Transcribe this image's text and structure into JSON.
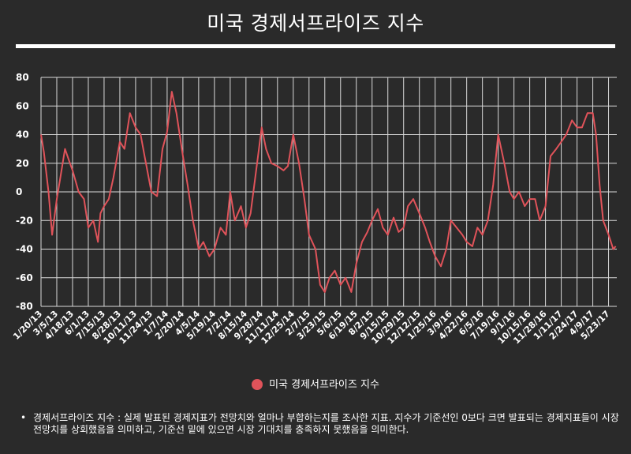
{
  "title": "미국 경제서프라이즈 지수",
  "legend": {
    "label": "미국 경제서프라이즈 지수",
    "color": "#e0535a"
  },
  "footnote": "경제서프라이즈 지수 : 실제 발표된 경제지표가 전망치와 얼마나 부합하는지를 조사한 지표. 지수가 기준선인 0보다 크면 발표되는 경제지표들이 시장전망치를 상회했음을 의미하고, 기준선 밑에 있으면 시장 기대치를 충족하지 못했음을 의미한다.",
  "colors": {
    "background": "#2a2a2a",
    "grid": "#d9d9d9",
    "line": "#e0535a",
    "text": "#ffffff"
  },
  "chart_data": {
    "type": "line",
    "title": "미국 경제서프라이즈 지수",
    "ylim": [
      -80,
      80
    ],
    "yticks": [
      80,
      60,
      40,
      20,
      0,
      -20,
      -40,
      -60,
      -80
    ],
    "grid": true,
    "legend_position": "bottom-center",
    "xlim": [
      "2013-01-20",
      "2017-06-15"
    ],
    "xticks": [
      "1/20/13",
      "3/5/13",
      "4/18/13",
      "6/1/13",
      "7/15/13",
      "8/28/13",
      "10/11/13",
      "11/24/13",
      "1/7/14",
      "2/20/14",
      "4/5/14",
      "5/19/14",
      "7/2/14",
      "8/15/14",
      "9/28/14",
      "11/11/14",
      "12/25/14",
      "2/7/15",
      "3/23/15",
      "5/6/15",
      "6/19/15",
      "8/2/15",
      "9/15/15",
      "10/29/15",
      "12/12/15",
      "1/25/16",
      "3/9/16",
      "4/22/16",
      "6/5/16",
      "7/19/16",
      "9/1/16",
      "10/15/16",
      "11/28/16",
      "1/11/17",
      "2/24/17",
      "4/9/17",
      "5/23/17"
    ],
    "series": [
      {
        "name": "미국 경제서프라이즈 지수",
        "x": [
          "2013-01-20",
          "2013-01-28",
          "2013-02-10",
          "2013-02-20",
          "2013-03-05",
          "2013-03-15",
          "2013-03-28",
          "2013-04-08",
          "2013-04-18",
          "2013-05-05",
          "2013-05-20",
          "2013-06-01",
          "2013-06-15",
          "2013-06-28",
          "2013-07-05",
          "2013-07-15",
          "2013-07-28",
          "2013-08-10",
          "2013-08-28",
          "2013-09-10",
          "2013-09-25",
          "2013-10-11",
          "2013-10-25",
          "2013-11-05",
          "2013-11-24",
          "2013-12-10",
          "2013-12-25",
          "2014-01-07",
          "2014-01-20",
          "2014-02-02",
          "2014-02-20",
          "2014-03-05",
          "2014-03-20",
          "2014-04-05",
          "2014-04-18",
          "2014-05-05",
          "2014-05-19",
          "2014-06-05",
          "2014-06-20",
          "2014-07-02",
          "2014-07-15",
          "2014-08-01",
          "2014-08-15",
          "2014-08-28",
          "2014-09-10",
          "2014-09-28",
          "2014-10-10",
          "2014-10-25",
          "2014-11-11",
          "2014-11-28",
          "2014-12-10",
          "2014-12-25",
          "2015-01-10",
          "2015-01-25",
          "2015-02-07",
          "2015-02-25",
          "2015-03-10",
          "2015-03-23",
          "2015-04-05",
          "2015-04-20",
          "2015-05-06",
          "2015-05-20",
          "2015-06-05",
          "2015-06-19",
          "2015-07-05",
          "2015-07-20",
          "2015-08-02",
          "2015-08-18",
          "2015-09-01",
          "2015-09-15",
          "2015-10-01",
          "2015-10-15",
          "2015-10-29",
          "2015-11-10",
          "2015-11-25",
          "2015-12-12",
          "2015-12-28",
          "2016-01-10",
          "2016-01-25",
          "2016-02-10",
          "2016-02-25",
          "2016-03-09",
          "2016-03-25",
          "2016-04-10",
          "2016-04-22",
          "2016-05-08",
          "2016-05-22",
          "2016-06-05",
          "2016-06-20",
          "2016-07-05",
          "2016-07-19",
          "2016-08-05",
          "2016-08-20",
          "2016-09-01",
          "2016-09-15",
          "2016-10-01",
          "2016-10-15",
          "2016-10-30",
          "2016-11-12",
          "2016-11-28",
          "2016-12-12",
          "2016-12-28",
          "2017-01-11",
          "2017-01-25",
          "2017-02-10",
          "2017-02-24",
          "2017-03-10",
          "2017-03-25",
          "2017-04-09",
          "2017-04-18",
          "2017-04-28",
          "2017-05-08",
          "2017-05-23",
          "2017-06-05",
          "2017-06-12"
        ],
        "y": [
          40,
          28,
          0,
          -30,
          -5,
          10,
          30,
          22,
          15,
          0,
          -5,
          -25,
          -20,
          -35,
          -15,
          -10,
          -5,
          10,
          35,
          30,
          55,
          45,
          40,
          25,
          0,
          -3,
          30,
          42,
          70,
          55,
          25,
          5,
          -20,
          -40,
          -35,
          -45,
          -40,
          -25,
          -30,
          0,
          -20,
          -10,
          -25,
          -15,
          10,
          45,
          30,
          20,
          18,
          15,
          18,
          40,
          20,
          -5,
          -30,
          -40,
          -65,
          -70,
          -60,
          -55,
          -65,
          -60,
          -70,
          -50,
          -35,
          -28,
          -20,
          -12,
          -25,
          -30,
          -18,
          -28,
          -25,
          -10,
          -5,
          -15,
          -25,
          -35,
          -45,
          -52,
          -40,
          -20,
          -25,
          -30,
          -35,
          -38,
          -25,
          -30,
          -20,
          5,
          40,
          20,
          0,
          -5,
          0,
          -10,
          -5,
          -5,
          -20,
          -10,
          25,
          30,
          35,
          40,
          50,
          45,
          45,
          55,
          55,
          40,
          5,
          -20,
          -30,
          -40,
          -38
        ]
      }
    ]
  }
}
